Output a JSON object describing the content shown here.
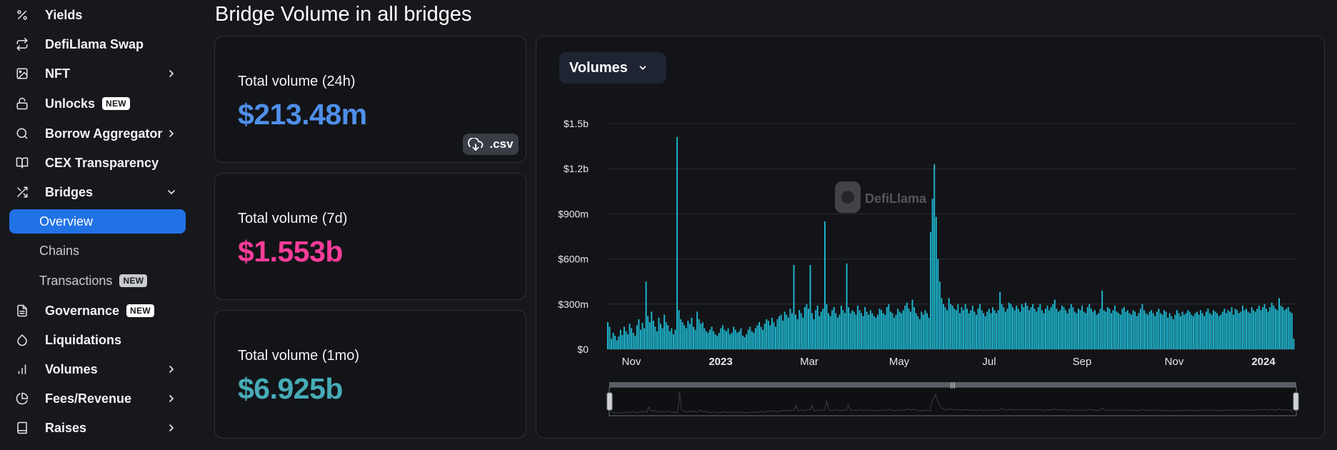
{
  "sidebar": {
    "items": [
      {
        "label": "Yields",
        "icon": "percent-icon"
      },
      {
        "label": "DefiLlama Swap",
        "icon": "swap-icon"
      },
      {
        "label": "NFT",
        "icon": "image-icon",
        "chevron": "right"
      },
      {
        "label": "Unlocks",
        "icon": "lock-icon",
        "badge": "NEW"
      },
      {
        "label": "Borrow Aggregator",
        "icon": "search-icon",
        "chevron": "right"
      },
      {
        "label": "CEX Transparency",
        "icon": "book-open-icon"
      },
      {
        "label": "Bridges",
        "icon": "shuffle-icon",
        "chevron": "down"
      },
      {
        "label": "Overview",
        "sub": true,
        "active": true
      },
      {
        "label": "Chains",
        "sub": true
      },
      {
        "label": "Transactions",
        "sub": true,
        "badge": "NEW"
      },
      {
        "label": "Governance",
        "icon": "file-text-icon",
        "badge": "NEW"
      },
      {
        "label": "Liquidations",
        "icon": "droplet-icon"
      },
      {
        "label": "Volumes",
        "icon": "bar-chart-icon",
        "chevron": "right"
      },
      {
        "label": "Fees/Revenue",
        "icon": "pie-chart-icon",
        "chevron": "right"
      },
      {
        "label": "Raises",
        "icon": "book-icon",
        "chevron": "right"
      }
    ]
  },
  "header": {
    "title": "Bridge Volume in all bridges"
  },
  "stats": [
    {
      "label": "Total volume (24h)",
      "value": "$213.48m",
      "color": "#4f8fea"
    },
    {
      "label": "Total volume (7d)",
      "value": "$1.553b",
      "color": "#fd3c99"
    },
    {
      "label": "Total volume (1mo)",
      "value": "$6.925b",
      "color": "#46acb7"
    }
  ],
  "csv_button": {
    "label": ".csv"
  },
  "volumes_dropdown": {
    "label": "Volumes"
  },
  "watermark": {
    "text": "DefiLlama"
  },
  "colors": {
    "accent": "#2172e5",
    "bar": "#1eb6cf",
    "bg": "#17181c",
    "panel": "#131418"
  },
  "chart_data": {
    "type": "bar",
    "yticks": [
      "$0",
      "$300m",
      "$600m",
      "$900m",
      "$1.2b",
      "$1.5b"
    ],
    "ylim": [
      0,
      1500
    ],
    "unit": "millions USD",
    "xticks": [
      "Nov",
      "2023",
      "Mar",
      "May",
      "Jul",
      "Sep",
      "Nov",
      "2024"
    ],
    "grid": true,
    "series": [
      {
        "values": [
          180,
          150,
          70,
          110,
          90,
          60,
          85,
          130,
          95,
          150,
          120,
          100,
          170,
          140,
          110,
          90,
          160,
          200,
          130,
          175,
          140,
          450,
          220,
          180,
          250,
          190,
          150,
          120,
          210,
          170,
          140,
          230,
          180,
          160,
          120,
          140,
          100,
          130,
          1410,
          260,
          200,
          180,
          160,
          140,
          190,
          170,
          210,
          150,
          130,
          250,
          200,
          170,
          180,
          140,
          120,
          110,
          130,
          150,
          120,
          100,
          90,
          110,
          140,
          160,
          130,
          120,
          140,
          100,
          110,
          150,
          130,
          110,
          120,
          140,
          90,
          80,
          100,
          130,
          150,
          120,
          110,
          140,
          160,
          180,
          150,
          130,
          170,
          200,
          190,
          160,
          210,
          180,
          150,
          200,
          220,
          230,
          190,
          250,
          230,
          210,
          270,
          240,
          560,
          230,
          200,
          260,
          240,
          210,
          280,
          300,
          270,
          560,
          240,
          200,
          260,
          290,
          220,
          250,
          270,
          850,
          300,
          240,
          220,
          260,
          280,
          240,
          210,
          230,
          290,
          260,
          240,
          570,
          280,
          240,
          260,
          250,
          230,
          290,
          260,
          240,
          220,
          280,
          250,
          230,
          260,
          240,
          220,
          210,
          230,
          270,
          260,
          240,
          230,
          280,
          300,
          250,
          240,
          210,
          230,
          270,
          250,
          240,
          260,
          290,
          310,
          270,
          250,
          330,
          280,
          240,
          220,
          200,
          250,
          230,
          260,
          240,
          210,
          780,
          1000,
          1230,
          880,
          600,
          450,
          340,
          300,
          280,
          260,
          340,
          300,
          290,
          270,
          260,
          300,
          240,
          280,
          260,
          300,
          270,
          240,
          260,
          290,
          250,
          230,
          270,
          300,
          260,
          240,
          220,
          250,
          270,
          240,
          280,
          260,
          240,
          260,
          380,
          300,
          280,
          250,
          270,
          310,
          300,
          280,
          260,
          290,
          270,
          250,
          300,
          280,
          310,
          290,
          260,
          280,
          300,
          270,
          250,
          280,
          300,
          260,
          240,
          270,
          290,
          260,
          280,
          300,
          330,
          270,
          250,
          260,
          290,
          280,
          260,
          240,
          270,
          300,
          280,
          250,
          240,
          270,
          260,
          290,
          250,
          240,
          280,
          300,
          270,
          250,
          260,
          230,
          240,
          270,
          390,
          260,
          250,
          280,
          270,
          240,
          260,
          290,
          250,
          240,
          230,
          270,
          280,
          250,
          260,
          240,
          230,
          260,
          250,
          220,
          240,
          270,
          300,
          260,
          240,
          230,
          250,
          260,
          240,
          220,
          250,
          270,
          240,
          230,
          260,
          250,
          210,
          240,
          220,
          200,
          230,
          260,
          240,
          220,
          250,
          230,
          240,
          260,
          250,
          230,
          220,
          240,
          250,
          230,
          260,
          240,
          220,
          250,
          270,
          240,
          230,
          260,
          250,
          240,
          220,
          230,
          250,
          270,
          240,
          260,
          250,
          280,
          230,
          270,
          260,
          240,
          250,
          290,
          260,
          270,
          250,
          240,
          280,
          260,
          250,
          270,
          290,
          260,
          280,
          300,
          270,
          250,
          280,
          310,
          290,
          270,
          260,
          340,
          290,
          280,
          260,
          270,
          280,
          250,
          240,
          70
        ]
      }
    ]
  }
}
